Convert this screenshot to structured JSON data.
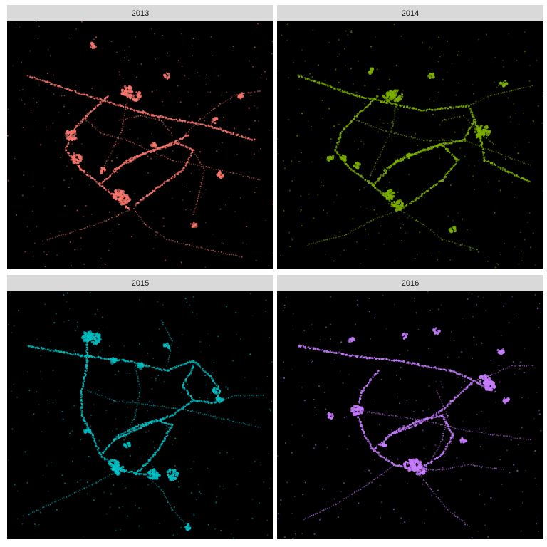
{
  "chart_data": {
    "type": "scatter",
    "description_free": true,
    "background": "#000000",
    "strip_fill": "#d9d9d9",
    "grid": false,
    "axes_shown": false,
    "legend": "none",
    "panels": [
      {
        "label": "2013",
        "color": "#f8766d",
        "routes": [
          [
            [
              0.08,
              0.22
            ],
            [
              0.3,
              0.3
            ],
            [
              0.55,
              0.38
            ],
            [
              0.75,
              0.42
            ],
            [
              0.93,
              0.48
            ]
          ],
          [
            [
              0.38,
              0.3
            ],
            [
              0.3,
              0.38
            ],
            [
              0.24,
              0.45
            ],
            [
              0.22,
              0.52
            ],
            [
              0.28,
              0.6
            ],
            [
              0.35,
              0.66
            ],
            [
              0.42,
              0.72
            ],
            [
              0.46,
              0.76
            ]
          ],
          [
            [
              0.35,
              0.66
            ],
            [
              0.45,
              0.56
            ],
            [
              0.55,
              0.52
            ],
            [
              0.64,
              0.49
            ],
            [
              0.7,
              0.52
            ],
            [
              0.66,
              0.6
            ],
            [
              0.58,
              0.66
            ],
            [
              0.48,
              0.74
            ]
          ],
          [
            [
              0.4,
              0.6
            ],
            [
              0.5,
              0.54
            ],
            [
              0.6,
              0.5
            ],
            [
              0.68,
              0.46
            ]
          ],
          [
            [
              0.35,
              0.62
            ],
            [
              0.43,
              0.44
            ],
            [
              0.45,
              0.32
            ]
          ],
          [
            [
              0.42,
              0.4
            ],
            [
              0.5,
              0.38
            ],
            [
              0.58,
              0.4
            ],
            [
              0.62,
              0.46
            ]
          ],
          [
            [
              0.47,
              0.75
            ],
            [
              0.52,
              0.82
            ],
            [
              0.6,
              0.88
            ],
            [
              0.75,
              0.92
            ],
            [
              0.88,
              0.95
            ]
          ],
          [
            [
              0.46,
              0.76
            ],
            [
              0.38,
              0.8
            ],
            [
              0.28,
              0.84
            ],
            [
              0.15,
              0.88
            ]
          ],
          [
            [
              0.64,
              0.49
            ],
            [
              0.72,
              0.4
            ],
            [
              0.78,
              0.35
            ],
            [
              0.85,
              0.3
            ],
            [
              0.95,
              0.28
            ]
          ],
          [
            [
              0.7,
              0.52
            ],
            [
              0.74,
              0.6
            ],
            [
              0.72,
              0.7
            ],
            [
              0.7,
              0.78
            ]
          ],
          [
            [
              0.3,
              0.4
            ],
            [
              0.35,
              0.45
            ],
            [
              0.45,
              0.48
            ],
            [
              0.62,
              0.56
            ],
            [
              0.8,
              0.6
            ],
            [
              0.95,
              0.64
            ]
          ]
        ],
        "hotspots": [
          [
            0.45,
            0.28
          ],
          [
            0.48,
            0.3
          ],
          [
            0.44,
            0.72
          ],
          [
            0.42,
            0.7
          ],
          [
            0.24,
            0.46
          ],
          [
            0.26,
            0.55
          ],
          [
            0.78,
            0.4
          ],
          [
            0.88,
            0.3
          ],
          [
            0.7,
            0.82
          ],
          [
            0.32,
            0.1
          ],
          [
            0.6,
            0.22
          ],
          [
            0.8,
            0.62
          ],
          [
            0.36,
            0.6
          ],
          [
            0.55,
            0.5
          ]
        ]
      },
      {
        "label": "2014",
        "color": "#7cae00",
        "routes": [
          [
            [
              0.08,
              0.22
            ],
            [
              0.3,
              0.3
            ],
            [
              0.55,
              0.36
            ],
            [
              0.72,
              0.34
            ],
            [
              0.76,
              0.45
            ],
            [
              0.78,
              0.56
            ],
            [
              0.95,
              0.65
            ]
          ],
          [
            [
              0.38,
              0.3
            ],
            [
              0.3,
              0.38
            ],
            [
              0.24,
              0.45
            ],
            [
              0.22,
              0.52
            ],
            [
              0.28,
              0.6
            ],
            [
              0.36,
              0.66
            ],
            [
              0.42,
              0.72
            ],
            [
              0.46,
              0.76
            ]
          ],
          [
            [
              0.36,
              0.66
            ],
            [
              0.45,
              0.56
            ],
            [
              0.55,
              0.52
            ],
            [
              0.62,
              0.5
            ],
            [
              0.68,
              0.56
            ],
            [
              0.62,
              0.64
            ],
            [
              0.52,
              0.72
            ],
            [
              0.46,
              0.76
            ]
          ],
          [
            [
              0.4,
              0.6
            ],
            [
              0.5,
              0.54
            ],
            [
              0.6,
              0.5
            ],
            [
              0.7,
              0.48
            ],
            [
              0.74,
              0.4
            ]
          ],
          [
            [
              0.35,
              0.62
            ],
            [
              0.43,
              0.44
            ],
            [
              0.45,
              0.32
            ]
          ],
          [
            [
              0.3,
              0.4
            ],
            [
              0.4,
              0.44
            ],
            [
              0.55,
              0.48
            ],
            [
              0.7,
              0.48
            ],
            [
              0.95,
              0.58
            ]
          ],
          [
            [
              0.46,
              0.76
            ],
            [
              0.55,
              0.82
            ],
            [
              0.62,
              0.88
            ],
            [
              0.75,
              0.92
            ]
          ],
          [
            [
              0.46,
              0.76
            ],
            [
              0.36,
              0.8
            ],
            [
              0.26,
              0.86
            ],
            [
              0.12,
              0.9
            ]
          ],
          [
            [
              0.72,
              0.34
            ],
            [
              0.8,
              0.3
            ],
            [
              0.88,
              0.28
            ],
            [
              0.96,
              0.26
            ]
          ],
          [
            [
              0.62,
              0.4
            ],
            [
              0.7,
              0.38
            ],
            [
              0.76,
              0.45
            ],
            [
              0.82,
              0.5
            ]
          ]
        ],
        "hotspots": [
          [
            0.42,
            0.3
          ],
          [
            0.45,
            0.3
          ],
          [
            0.76,
            0.45
          ],
          [
            0.78,
            0.44
          ],
          [
            0.45,
            0.74
          ],
          [
            0.42,
            0.7
          ],
          [
            0.25,
            0.55
          ],
          [
            0.3,
            0.58
          ],
          [
            0.35,
            0.2
          ],
          [
            0.58,
            0.22
          ],
          [
            0.85,
            0.25
          ],
          [
            0.66,
            0.84
          ],
          [
            0.2,
            0.55
          ],
          [
            0.5,
            0.54
          ]
        ]
      },
      {
        "label": "2015",
        "color": "#00bfc4",
        "routes": [
          [
            [
              0.08,
              0.22
            ],
            [
              0.28,
              0.26
            ],
            [
              0.45,
              0.28
            ],
            [
              0.6,
              0.32
            ],
            [
              0.7,
              0.28
            ],
            [
              0.76,
              0.34
            ],
            [
              0.8,
              0.4
            ],
            [
              0.78,
              0.45
            ],
            [
              0.7,
              0.44
            ],
            [
              0.66,
              0.38
            ],
            [
              0.7,
              0.3
            ]
          ],
          [
            [
              0.3,
              0.18
            ],
            [
              0.3,
              0.3
            ],
            [
              0.28,
              0.4
            ],
            [
              0.28,
              0.5
            ],
            [
              0.32,
              0.58
            ],
            [
              0.35,
              0.66
            ],
            [
              0.42,
              0.72
            ],
            [
              0.52,
              0.74
            ]
          ],
          [
            [
              0.35,
              0.66
            ],
            [
              0.42,
              0.58
            ],
            [
              0.5,
              0.54
            ],
            [
              0.56,
              0.52
            ],
            [
              0.62,
              0.54
            ],
            [
              0.58,
              0.62
            ],
            [
              0.52,
              0.7
            ],
            [
              0.48,
              0.74
            ]
          ],
          [
            [
              0.4,
              0.6
            ],
            [
              0.52,
              0.54
            ],
            [
              0.62,
              0.5
            ],
            [
              0.7,
              0.44
            ]
          ],
          [
            [
              0.48,
              0.3
            ],
            [
              0.5,
              0.4
            ],
            [
              0.48,
              0.5
            ],
            [
              0.44,
              0.6
            ]
          ],
          [
            [
              0.3,
              0.4
            ],
            [
              0.4,
              0.44
            ],
            [
              0.55,
              0.46
            ],
            [
              0.68,
              0.48
            ],
            [
              0.95,
              0.55
            ]
          ],
          [
            [
              0.52,
              0.74
            ],
            [
              0.58,
              0.8
            ],
            [
              0.62,
              0.88
            ],
            [
              0.68,
              0.95
            ]
          ],
          [
            [
              0.42,
              0.72
            ],
            [
              0.32,
              0.78
            ],
            [
              0.2,
              0.84
            ],
            [
              0.08,
              0.9
            ]
          ],
          [
            [
              0.6,
              0.3
            ],
            [
              0.62,
              0.2
            ],
            [
              0.58,
              0.12
            ]
          ],
          [
            [
              0.78,
              0.45
            ],
            [
              0.86,
              0.42
            ],
            [
              0.96,
              0.42
            ]
          ]
        ],
        "hotspots": [
          [
            0.3,
            0.18
          ],
          [
            0.33,
            0.19
          ],
          [
            0.4,
            0.7
          ],
          [
            0.42,
            0.72
          ],
          [
            0.55,
            0.74
          ],
          [
            0.62,
            0.74
          ],
          [
            0.78,
            0.4
          ],
          [
            0.8,
            0.44
          ],
          [
            0.4,
            0.28
          ],
          [
            0.5,
            0.3
          ],
          [
            0.6,
            0.22
          ],
          [
            0.3,
            0.56
          ],
          [
            0.68,
            0.95
          ],
          [
            0.45,
            0.62
          ]
        ]
      },
      {
        "label": "2016",
        "color": "#c77cff",
        "routes": [
          [
            [
              0.08,
              0.22
            ],
            [
              0.28,
              0.26
            ],
            [
              0.45,
              0.28
            ],
            [
              0.65,
              0.32
            ],
            [
              0.74,
              0.36
            ],
            [
              0.8,
              0.4
            ]
          ],
          [
            [
              0.38,
              0.32
            ],
            [
              0.32,
              0.4
            ],
            [
              0.3,
              0.48
            ],
            [
              0.32,
              0.56
            ],
            [
              0.36,
              0.64
            ],
            [
              0.44,
              0.7
            ],
            [
              0.52,
              0.72
            ]
          ],
          [
            [
              0.36,
              0.64
            ],
            [
              0.45,
              0.56
            ],
            [
              0.54,
              0.52
            ],
            [
              0.62,
              0.5
            ],
            [
              0.66,
              0.58
            ],
            [
              0.62,
              0.66
            ],
            [
              0.56,
              0.7
            ],
            [
              0.52,
              0.72
            ]
          ],
          [
            [
              0.42,
              0.58
            ],
            [
              0.52,
              0.54
            ],
            [
              0.62,
              0.48
            ],
            [
              0.68,
              0.42
            ],
            [
              0.74,
              0.36
            ]
          ],
          [
            [
              0.6,
              0.4
            ],
            [
              0.64,
              0.5
            ],
            [
              0.62,
              0.6
            ],
            [
              0.58,
              0.68
            ]
          ],
          [
            [
              0.3,
              0.48
            ],
            [
              0.42,
              0.5
            ],
            [
              0.55,
              0.52
            ],
            [
              0.7,
              0.56
            ],
            [
              0.95,
              0.6
            ]
          ],
          [
            [
              0.52,
              0.72
            ],
            [
              0.58,
              0.8
            ],
            [
              0.64,
              0.88
            ],
            [
              0.72,
              0.95
            ]
          ],
          [
            [
              0.44,
              0.7
            ],
            [
              0.34,
              0.78
            ],
            [
              0.22,
              0.86
            ],
            [
              0.1,
              0.92
            ]
          ],
          [
            [
              0.74,
              0.36
            ],
            [
              0.8,
              0.34
            ],
            [
              0.88,
              0.3
            ],
            [
              0.96,
              0.3
            ]
          ],
          [
            [
              0.52,
              0.72
            ],
            [
              0.62,
              0.72
            ],
            [
              0.72,
              0.7
            ],
            [
              0.85,
              0.72
            ]
          ]
        ],
        "hotspots": [
          [
            0.78,
            0.36
          ],
          [
            0.8,
            0.38
          ],
          [
            0.52,
            0.7
          ],
          [
            0.54,
            0.72
          ],
          [
            0.5,
            0.7
          ],
          [
            0.3,
            0.48
          ],
          [
            0.28,
            0.2
          ],
          [
            0.48,
            0.18
          ],
          [
            0.6,
            0.16
          ],
          [
            0.84,
            0.24
          ],
          [
            0.86,
            0.44
          ],
          [
            0.4,
            0.62
          ],
          [
            0.7,
            0.6
          ],
          [
            0.2,
            0.5
          ]
        ]
      }
    ]
  }
}
